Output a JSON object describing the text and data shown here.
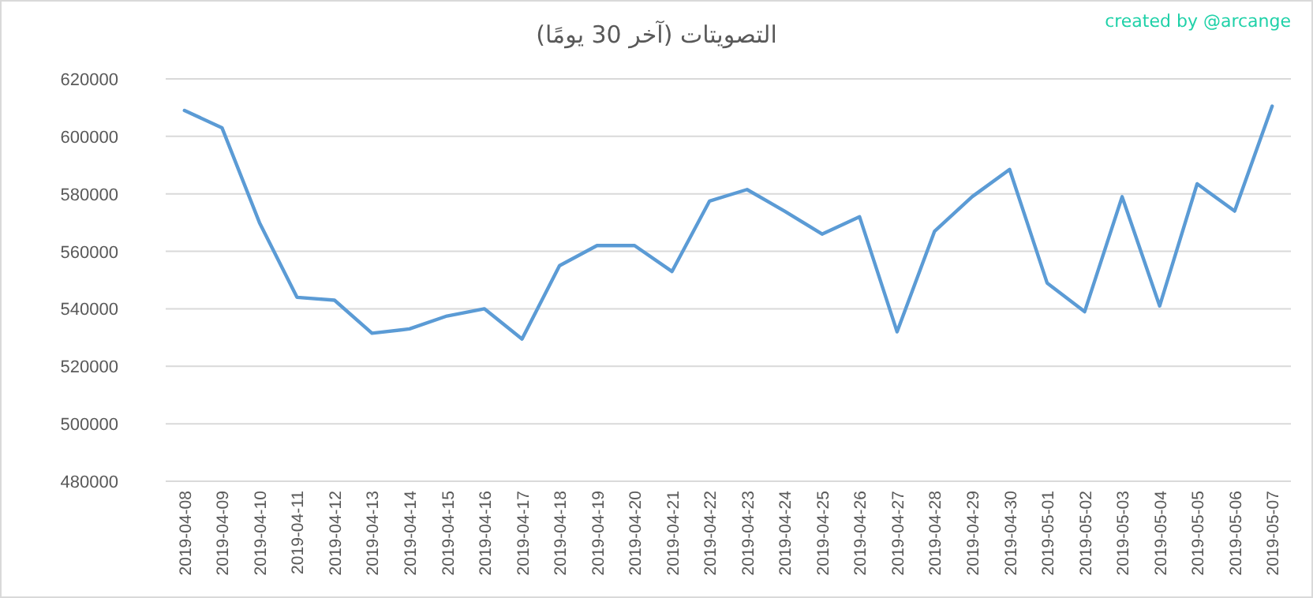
{
  "chart_data": {
    "type": "line",
    "title": "التصويتات (آخر 30 يومًا)",
    "annotations": [
      "created by @arcange"
    ],
    "categories": [
      "2019-04-08",
      "2019-04-09",
      "2019-04-10",
      "2019-04-11",
      "2019-04-12",
      "2019-04-13",
      "2019-04-14",
      "2019-04-15",
      "2019-04-16",
      "2019-04-17",
      "2019-04-18",
      "2019-04-19",
      "2019-04-20",
      "2019-04-21",
      "2019-04-22",
      "2019-04-23",
      "2019-04-24",
      "2019-04-25",
      "2019-04-26",
      "2019-04-27",
      "2019-04-28",
      "2019-04-29",
      "2019-04-30",
      "2019-05-01",
      "2019-05-02",
      "2019-05-03",
      "2019-05-04",
      "2019-05-05",
      "2019-05-06",
      "2019-05-07"
    ],
    "series": [
      {
        "color": "#5b9bd5",
        "values": [
          609000,
          603000,
          570000,
          544000,
          543000,
          531500,
          533000,
          537500,
          540000,
          529500,
          555000,
          562000,
          562000,
          553000,
          577500,
          581500,
          574000,
          566000,
          572000,
          532000,
          567000,
          579000,
          588500,
          549000,
          539000,
          579000,
          541000,
          583500,
          574000,
          610500
        ]
      }
    ],
    "ylim": [
      480000,
      620000
    ],
    "yticks": [
      480000,
      500000,
      520000,
      540000,
      560000,
      580000,
      600000,
      620000
    ],
    "grid": "y",
    "marker": "none",
    "line_style": "solid"
  }
}
